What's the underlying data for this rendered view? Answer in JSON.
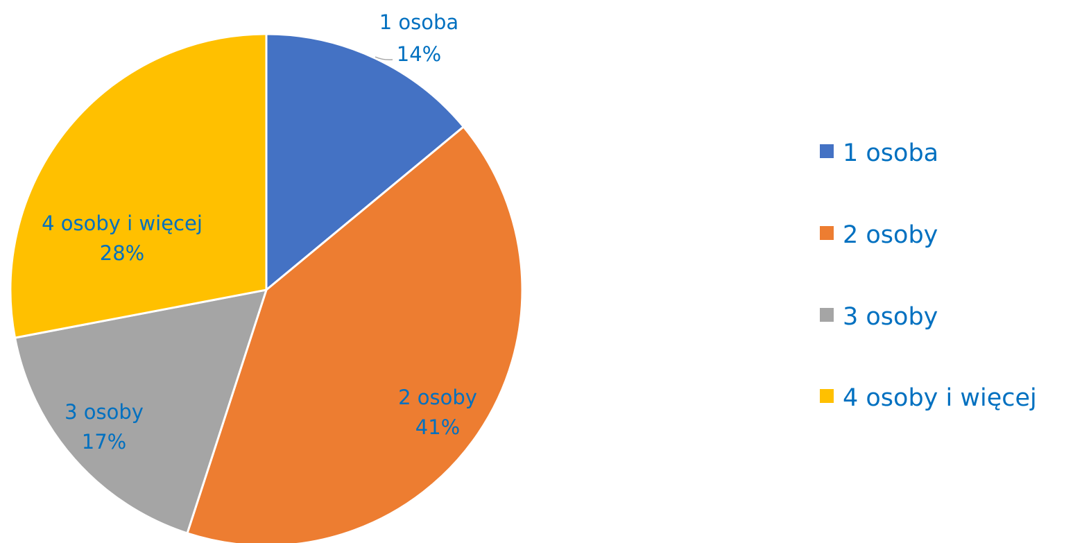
{
  "chart_data": {
    "type": "pie",
    "title": "",
    "categories": [
      "1 osoba",
      "2 osoby",
      "3 osoby",
      "4 osoby i więcej"
    ],
    "values": [
      14,
      41,
      17,
      28
    ],
    "value_unit": "%",
    "start_angle_deg": 0,
    "direction": "clockwise",
    "colors": [
      "#4472c4",
      "#ed7d31",
      "#a5a5a5",
      "#ffc000"
    ],
    "label_color": "#0070c0",
    "data_labels": [
      {
        "name": "1 osoba",
        "value": "14%"
      },
      {
        "name": "2 osoby",
        "value": "41%"
      },
      {
        "name": "3 osoby",
        "value": "17%"
      },
      {
        "name": "4 osoby i więcej",
        "value": "28%"
      }
    ],
    "legend": {
      "position": "right",
      "entries": [
        "1 osoba",
        "2 osoby",
        "3 osoby",
        "4 osoby i więcej"
      ]
    }
  }
}
